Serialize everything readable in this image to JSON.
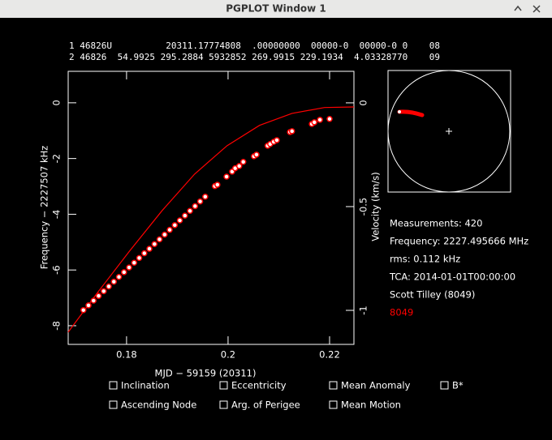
{
  "window": {
    "title": "PGPLOT Window 1"
  },
  "tle": [
    "1 46826U          20311.17774808  .00000000  00000-0  00000-0 0    08",
    "2 46826  54.9925 295.2884 5932852 269.9915 229.1934  4.03328770    09"
  ],
  "chart_data": {
    "type": "scatter",
    "xlabel": "MJD − 59159 (20311)",
    "ylabel": "Frequency − 2227507 kHz",
    "y2label": "Velocity (km/s)",
    "xlim": [
      0.1685,
      0.2248
    ],
    "xticks": [
      0.18,
      0.2,
      0.22
    ],
    "ylim": [
      -8.67,
      1.13
    ],
    "yticks": [
      0,
      -2,
      -4,
      -6,
      -8
    ],
    "y2lim": [
      -1.164,
      0.152
    ],
    "y2ticks": [
      0,
      -0.5,
      -1
    ],
    "series": [
      {
        "type": "line",
        "color": "#ff0000",
        "x": [
          0.1685,
          0.1742,
          0.1806,
          0.187,
          0.1934,
          0.1998,
          0.2062,
          0.2126,
          0.219,
          0.2248
        ],
        "values": [
          -8.23,
          -6.83,
          -5.32,
          -3.87,
          -2.56,
          -1.54,
          -0.81,
          -0.38,
          -0.17,
          -0.15
        ]
      },
      {
        "type": "scatter",
        "color": "#ff0000",
        "x": [
          0.1715,
          0.1725,
          0.1735,
          0.1745,
          0.1755,
          0.1765,
          0.1775,
          0.1785,
          0.1795,
          0.1805,
          0.1815,
          0.1825,
          0.1835,
          0.1845,
          0.1855,
          0.1865,
          0.1875,
          0.1885,
          0.1895,
          0.1905,
          0.1915,
          0.1925,
          0.1935,
          0.1945,
          0.1955,
          0.1974,
          0.1979,
          0.1997,
          0.2008,
          0.2014,
          0.2022,
          0.203,
          0.2051,
          0.2056,
          0.2078,
          0.2083,
          0.209,
          0.2096,
          0.2122,
          0.2126,
          0.2165,
          0.217,
          0.2181,
          0.22
        ],
        "values": [
          -7.44,
          -7.27,
          -7.1,
          -6.93,
          -6.76,
          -6.59,
          -6.42,
          -6.25,
          -6.08,
          -5.91,
          -5.74,
          -5.57,
          -5.4,
          -5.24,
          -5.07,
          -4.9,
          -4.73,
          -4.56,
          -4.39,
          -4.22,
          -4.05,
          -3.88,
          -3.71,
          -3.54,
          -3.37,
          -2.99,
          -2.94,
          -2.65,
          -2.47,
          -2.35,
          -2.27,
          -2.12,
          -1.92,
          -1.86,
          -1.54,
          -1.48,
          -1.4,
          -1.34,
          -1.05,
          -1.02,
          -0.76,
          -0.7,
          -0.61,
          -0.58
        ]
      }
    ]
  },
  "info": [
    "Measurements: 420",
    "Frequency: 2227.495666 MHz",
    "rms: 0.112 kHz",
    "TCA: 2014-01-01T00:00:00",
    "Scott Tilley (8049)",
    "8049"
  ],
  "options": [
    "Inclination",
    "Eccentricity",
    "Mean Anomaly",
    "B*",
    "Ascending Node",
    "Arg. of Perigee",
    "Mean Motion"
  ]
}
